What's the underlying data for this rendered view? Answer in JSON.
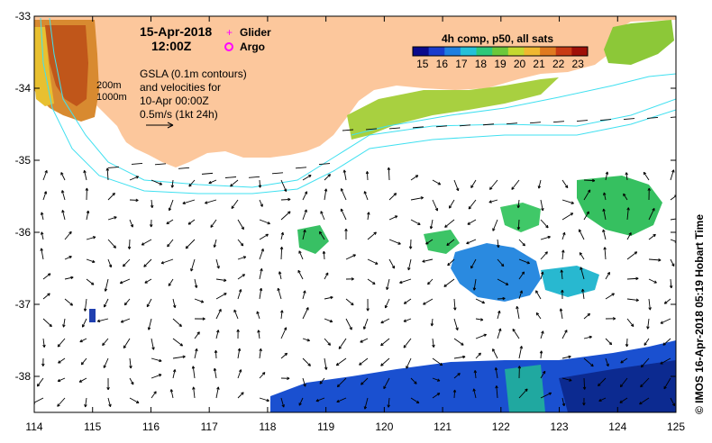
{
  "map": {
    "date": "15-Apr-2018",
    "time": "12:00Z",
    "legend": {
      "glider": "Glider",
      "argo": "Argo"
    },
    "description": [
      "GSLA (0.1m contours)",
      "and velocities for",
      "10-Apr 00:00Z",
      "0.5m/s (1kt 24h)"
    ],
    "depth_contours": [
      "200m",
      "1000m"
    ],
    "credit": "© IMOS 16-Apr-2018 05:19 Hobart Time"
  },
  "colorbar": {
    "title": "4h comp, p50, all sats",
    "labels": [
      "15",
      "16",
      "17",
      "18",
      "19",
      "20",
      "21",
      "22",
      "23"
    ],
    "range": [
      14.5,
      23.5
    ],
    "colors": [
      "#0a0a8c",
      "#1a3ccc",
      "#1f7fe0",
      "#25c0d8",
      "#2ec87a",
      "#6cc83a",
      "#c4d830",
      "#f0b830",
      "#e07a20",
      "#c83a14",
      "#a01008"
    ]
  },
  "axes": {
    "x_labels": [
      "114",
      "115",
      "116",
      "117",
      "118",
      "119",
      "120",
      "121",
      "122",
      "123",
      "124",
      "125"
    ],
    "y_labels": [
      "-33",
      "-34",
      "-35",
      "-36",
      "-37",
      "-38"
    ],
    "lon_range": [
      114,
      125
    ],
    "lat_range": [
      -33,
      -38.5
    ]
  },
  "colors": {
    "land": "#fcc79c",
    "contour": "#40e0f0",
    "glider": "#ff00ff",
    "argo": "#ff00ff"
  }
}
